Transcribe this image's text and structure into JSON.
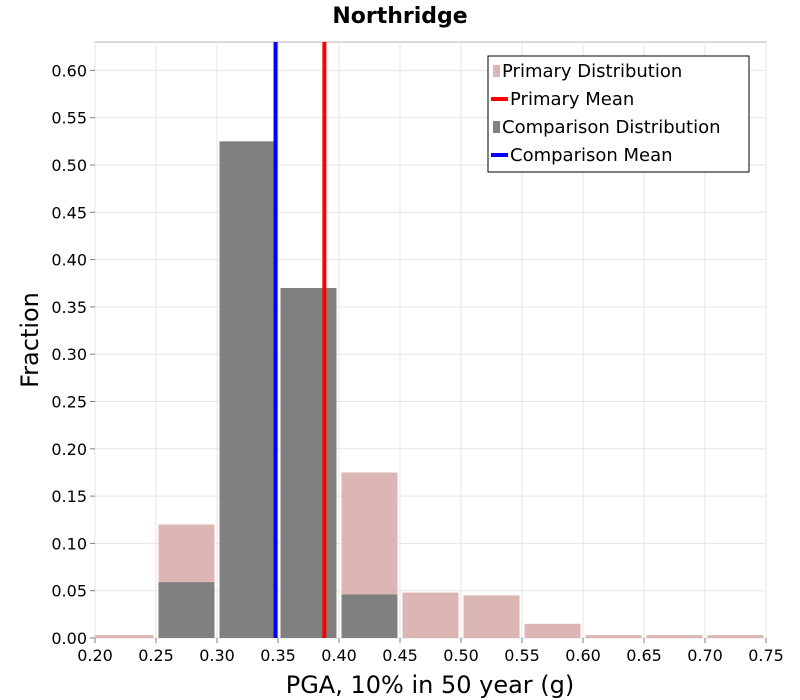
{
  "chart_data": {
    "type": "bar",
    "title": "Northridge",
    "xlabel": "PGA, 10% in 50 year (g)",
    "ylabel": "Fraction",
    "xlim": [
      0.2,
      0.75
    ],
    "ylim": [
      0.0,
      0.63
    ],
    "xticks": [
      "0.20",
      "0.25",
      "0.30",
      "0.35",
      "0.40",
      "0.45",
      "0.50",
      "0.55",
      "0.60",
      "0.65",
      "0.70",
      "0.75"
    ],
    "yticks": [
      "0.00",
      "0.05",
      "0.10",
      "0.15",
      "0.20",
      "0.25",
      "0.30",
      "0.35",
      "0.40",
      "0.45",
      "0.50",
      "0.55",
      "0.60"
    ],
    "bin_width": 0.05,
    "bins": [
      0.2,
      0.25,
      0.3,
      0.35,
      0.4,
      0.45,
      0.5,
      0.55,
      0.6,
      0.65,
      0.7
    ],
    "grid": true,
    "legend_position": "top-right",
    "series": [
      {
        "name": "Primary Distribution",
        "kind": "bar",
        "color": "#dcb5b5",
        "values": [
          0.003,
          0.12,
          0.0,
          0.0,
          0.175,
          0.048,
          0.045,
          0.015,
          0.003,
          0.003,
          0.003
        ]
      },
      {
        "name": "Comparison Distribution",
        "kind": "bar",
        "color": "#808080",
        "values": [
          0.0,
          0.059,
          0.525,
          0.37,
          0.046,
          0.0,
          0.0,
          0.0,
          0.0,
          0.0,
          0.0
        ]
      },
      {
        "name": "Primary Mean",
        "kind": "vline",
        "color": "#ff0000",
        "x": 0.388
      },
      {
        "name": "Comparison Mean",
        "kind": "vline",
        "color": "#0000ff",
        "x": 0.348
      }
    ],
    "legend_order": [
      "Primary Distribution",
      "Primary Mean",
      "Comparison Distribution",
      "Comparison Mean"
    ]
  }
}
